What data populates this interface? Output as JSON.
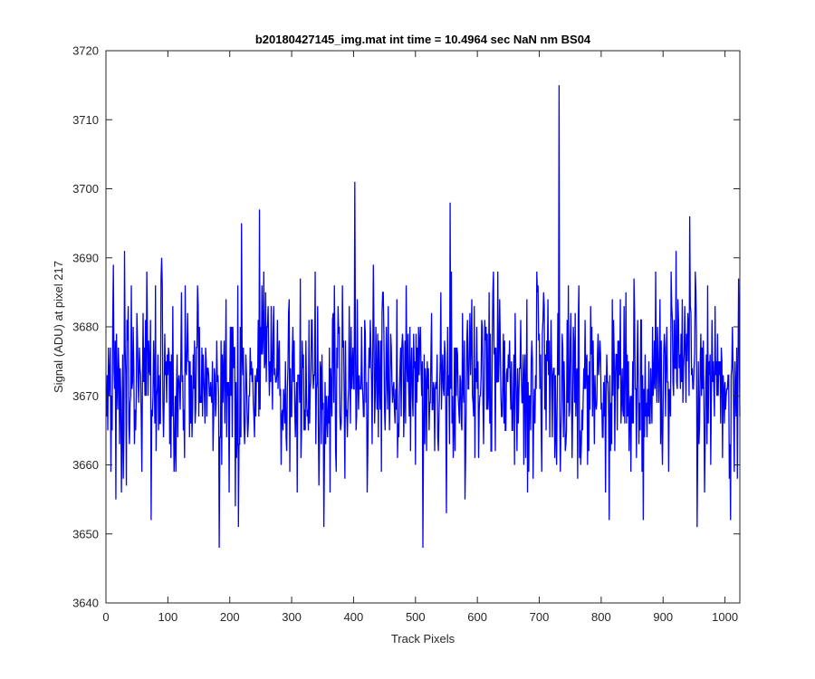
{
  "chart_data": {
    "type": "line",
    "title": "b20180427145_img.mat int time = 10.4964 sec  NaN nm BS04",
    "xlabel": "Track Pixels",
    "ylabel": "Signal (ADU) at pixel 217",
    "xlim": [
      0,
      1024
    ],
    "ylim": [
      3640,
      3720
    ],
    "xticks": [
      0,
      100,
      200,
      300,
      400,
      500,
      600,
      700,
      800,
      900,
      1000
    ],
    "yticks": [
      3640,
      3650,
      3660,
      3670,
      3680,
      3690,
      3700,
      3710,
      3720
    ],
    "grid": false,
    "legend": "none",
    "series": [
      {
        "color": "#0000ff",
        "x_start": 1,
        "x_step": 1,
        "n_points": 1024,
        "baseline": 3672,
        "noise_std": 6.5,
        "noise_seed": 217,
        "extremes": [
          {
            "x": 8,
            "y": 3659
          },
          {
            "x": 12,
            "y": 3689
          },
          {
            "x": 16,
            "y": 3655
          },
          {
            "x": 30,
            "y": 3691
          },
          {
            "x": 73,
            "y": 3652
          },
          {
            "x": 90,
            "y": 3690
          },
          {
            "x": 183,
            "y": 3648
          },
          {
            "x": 209,
            "y": 3654
          },
          {
            "x": 214,
            "y": 3651
          },
          {
            "x": 219,
            "y": 3695
          },
          {
            "x": 248,
            "y": 3697
          },
          {
            "x": 297,
            "y": 3659
          },
          {
            "x": 352,
            "y": 3651
          },
          {
            "x": 402,
            "y": 3701
          },
          {
            "x": 432,
            "y": 3689
          },
          {
            "x": 512,
            "y": 3648
          },
          {
            "x": 550,
            "y": 3653
          },
          {
            "x": 556,
            "y": 3698
          },
          {
            "x": 580,
            "y": 3655
          },
          {
            "x": 633,
            "y": 3688
          },
          {
            "x": 732,
            "y": 3715
          },
          {
            "x": 734,
            "y": 3659
          },
          {
            "x": 813,
            "y": 3652
          },
          {
            "x": 868,
            "y": 3652
          },
          {
            "x": 888,
            "y": 3688
          },
          {
            "x": 921,
            "y": 3691
          },
          {
            "x": 943,
            "y": 3696
          },
          {
            "x": 955,
            "y": 3651
          },
          {
            "x": 1009,
            "y": 3652
          },
          {
            "x": 1020,
            "y": 3658
          }
        ]
      }
    ]
  }
}
